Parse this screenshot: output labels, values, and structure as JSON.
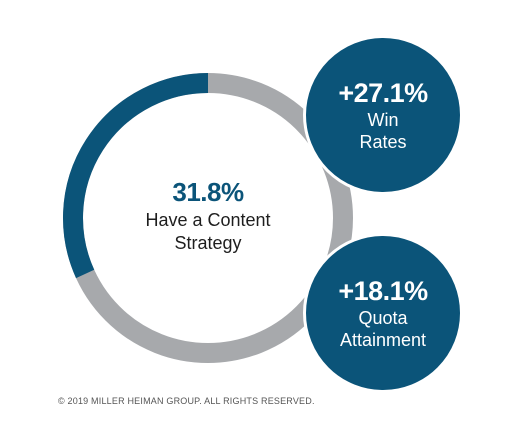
{
  "chart_data": {
    "type": "pie",
    "variant": "donut",
    "value_percent": 31.8,
    "label_line1": "Have a Content",
    "label_line2": "Strategy",
    "value_text": "31.8%",
    "colors": {
      "value": "#0b5479",
      "remainder": "#a7a9ac"
    }
  },
  "stats": [
    {
      "value": "+27.1%",
      "label_line1": "Win",
      "label_line2": "Rates",
      "color": "#0b5479"
    },
    {
      "value": "+18.1%",
      "label_line1": "Quota",
      "label_line2": "Attainment",
      "color": "#0b5479"
    }
  ],
  "footer": {
    "copyright": "© 2019 MILLER HEIMAN GROUP. ALL RIGHTS RESERVED."
  }
}
